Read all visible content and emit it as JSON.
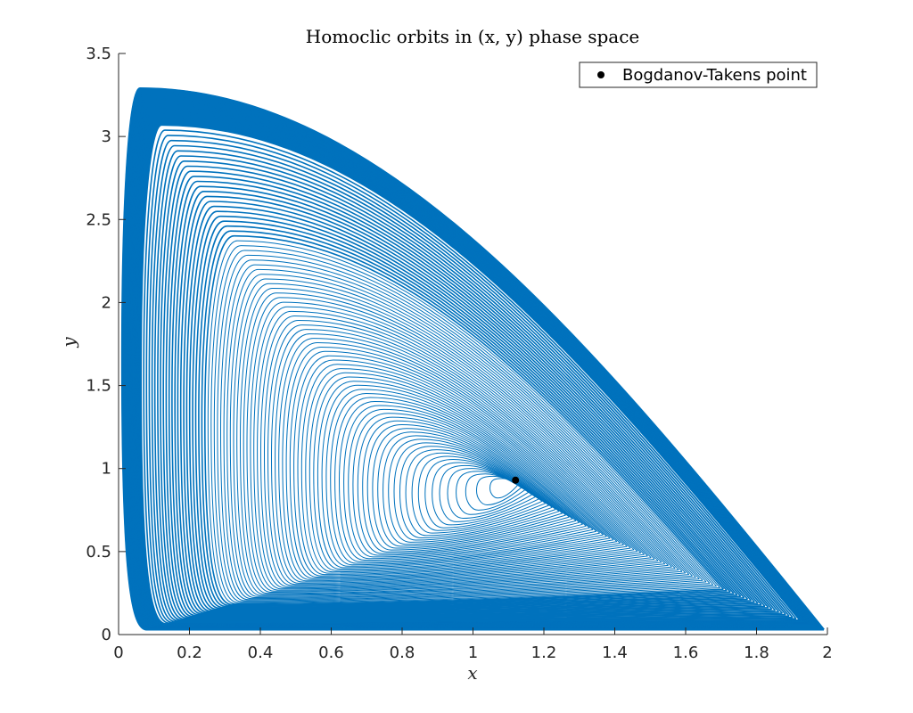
{
  "chart_data": {
    "type": "line",
    "title": "Homoclic orbits in (x, y) phase space",
    "xlabel": "x",
    "ylabel": "y",
    "xlim": [
      0,
      2
    ],
    "ylim": [
      0,
      3.5
    ],
    "grid": false,
    "legend_placement": "top-right",
    "x_ticks": [
      "0",
      "0.2",
      "0.4",
      "0.6",
      "0.8",
      "1",
      "1.2",
      "1.4",
      "1.6",
      "1.8",
      "2"
    ],
    "y_ticks": [
      "0",
      "0.5",
      "1",
      "1.5",
      "2",
      "2.5",
      "3",
      "3.5"
    ],
    "series": [
      {
        "style": "spiral-curves",
        "color": "#0072BD",
        "center": [
          1.12,
          0.93
        ],
        "outer_envelope": {
          "x_max": 1.99,
          "y_max": 3.29,
          "y_min": 0.03,
          "x_min": 0.0
        },
        "sample_apexes_x": [
          1.26,
          1.33,
          1.44,
          1.53,
          1.64,
          1.76,
          1.88,
          1.95,
          1.98
        ]
      },
      {
        "name": "Bogdanov-Takens point",
        "type": "scatter",
        "color": "#000000",
        "points": [
          [
            1.12,
            0.93
          ]
        ]
      }
    ]
  }
}
